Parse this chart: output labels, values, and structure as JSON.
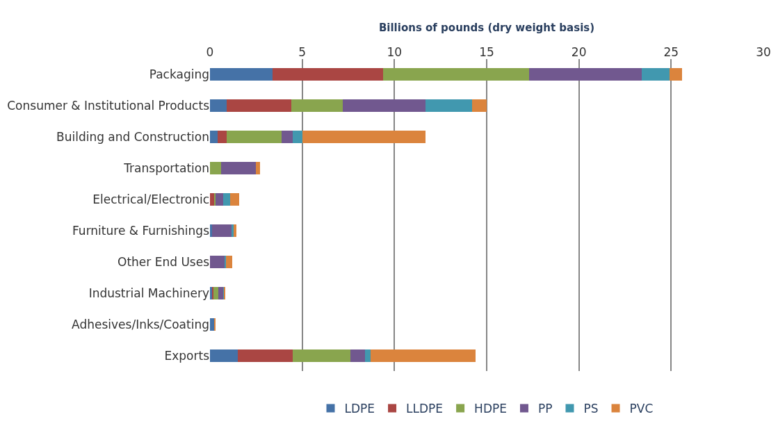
{
  "chart_data": {
    "type": "bar",
    "orientation": "horizontal",
    "stacked": true,
    "xlabel": "Billions of pounds (dry weight basis)",
    "categories": [
      "Packaging",
      "Consumer & Institutional Products",
      "Building and Construction",
      "Transportation",
      "Electrical/Electronic",
      "Furniture & Furnishings",
      "Other End Uses",
      "Industrial Machinery",
      "Adhesives/Inks/Coating",
      "Exports"
    ],
    "series": [
      {
        "name": "LDPE",
        "color": "#4572a7",
        "values": [
          3.4,
          0.9,
          0.4,
          0,
          null,
          0.1,
          null,
          0.15,
          0.25,
          1.5
        ]
      },
      {
        "name": "LLDPE",
        "color": "#aa4643",
        "values": [
          6.0,
          3.5,
          0.5,
          0,
          0.25,
          0,
          0,
          0.05,
          0,
          3.0
        ]
      },
      {
        "name": "HDPE",
        "color": "#89a54e",
        "values": [
          7.9,
          2.8,
          3.0,
          0.6,
          0.05,
          0,
          0,
          0.25,
          0,
          3.1
        ]
      },
      {
        "name": "PP",
        "color": "#71588f",
        "values": [
          6.1,
          4.5,
          0.6,
          1.9,
          0.4,
          1.05,
          0.8,
          0.3,
          0,
          0.8
        ]
      },
      {
        "name": "PS",
        "color": "#4198af",
        "values": [
          1.5,
          2.5,
          0.5,
          0,
          0.4,
          0.15,
          0.05,
          0.02,
          0,
          0.3
        ]
      },
      {
        "name": "PVC",
        "color": "#db843d",
        "values": [
          0.7,
          0.8,
          6.7,
          0.2,
          0.5,
          0.15,
          0.35,
          0.05,
          0.07,
          5.7
        ]
      }
    ],
    "xlim": [
      0,
      30
    ],
    "xticks": [
      0,
      5,
      10,
      15,
      20,
      25,
      30
    ],
    "grid": "x",
    "legend": "bottom"
  }
}
